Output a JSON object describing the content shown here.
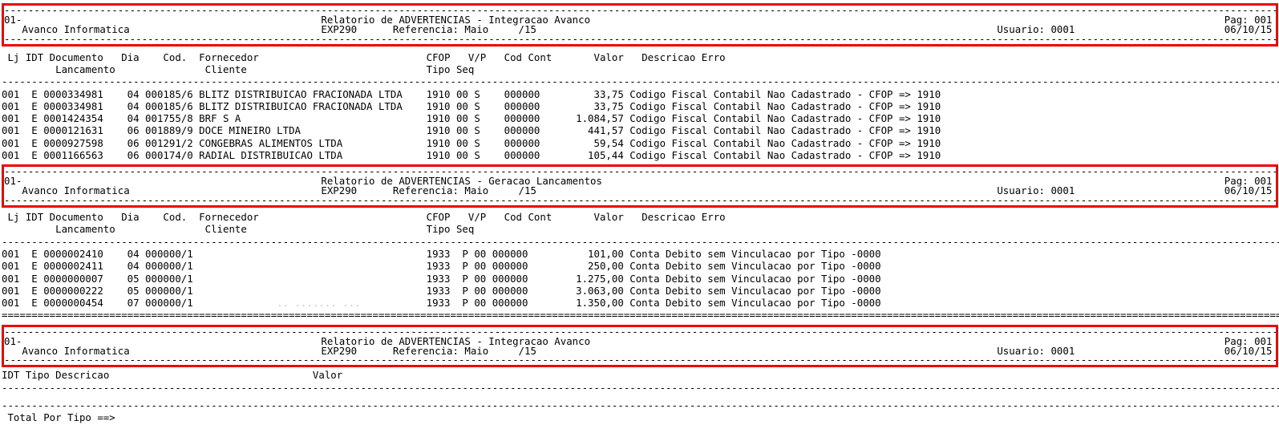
{
  "page_header": {
    "company_code": "01-",
    "company_name": "Avanco Informatica",
    "program": "EXP290",
    "reference": "Referencia: Maio",
    "period": "/15",
    "page": "Pag: 001",
    "user": "Usuario: 0001",
    "date": "06/10/15"
  },
  "colors": {
    "highlight_border": "#ee0000",
    "text": "#000000",
    "faint_text": "#c4c9d4"
  },
  "sections": [
    {
      "title": "Relatorio de ADVERTENCIAS - Integracao Avanco",
      "header1": {
        "lj": "Lj",
        "idt": "IDT",
        "documento": "Documento",
        "dia": "Dia",
        "codigo": "Cod.",
        "fornecedor": "Fornecedor",
        "cfop": "CFOP",
        "vp": "V/P",
        "cod_cont": "Cod Cont",
        "valor": "Valor",
        "erro": "Descricao Erro"
      },
      "header2": {
        "lancamento": "Lancamento",
        "cliente": "Cliente",
        "tipo": "Tipo",
        "seq": "Seq"
      },
      "rows": [
        {
          "lj": "001",
          "idt": "E",
          "documento": "0000334981",
          "dia": "04",
          "codigo": "000185/6",
          "nome": "BLITZ DISTRIBUICAO FRACIONADA LTDA",
          "cfop": "1910",
          "seq": "00",
          "vp": "S",
          "cod_cont": "000000",
          "valor": "33,75",
          "erro": "Codigo Fiscal Contabil Nao Cadastrado - CFOP => 1910"
        },
        {
          "lj": "001",
          "idt": "E",
          "documento": "0000334981",
          "dia": "04",
          "codigo": "000185/6",
          "nome": "BLITZ DISTRIBUICAO FRACIONADA LTDA",
          "cfop": "1910",
          "seq": "00",
          "vp": "S",
          "cod_cont": "000000",
          "valor": "33,75",
          "erro": "Codigo Fiscal Contabil Nao Cadastrado - CFOP => 1910"
        },
        {
          "lj": "001",
          "idt": "E",
          "documento": "0001424354",
          "dia": "04",
          "codigo": "001755/8",
          "nome": "BRF S A",
          "cfop": "1910",
          "seq": "00",
          "vp": "S",
          "cod_cont": "000000",
          "valor": "1.084,57",
          "erro": "Codigo Fiscal Contabil Nao Cadastrado - CFOP => 1910"
        },
        {
          "lj": "001",
          "idt": "E",
          "documento": "0000121631",
          "dia": "06",
          "codigo": "001889/9",
          "nome": "DOCE MINEIRO LTDA",
          "cfop": "1910",
          "seq": "00",
          "vp": "S",
          "cod_cont": "000000",
          "valor": "441,57",
          "erro": "Codigo Fiscal Contabil Nao Cadastrado - CFOP => 1910"
        },
        {
          "lj": "001",
          "idt": "E",
          "documento": "0000927598",
          "dia": "06",
          "codigo": "001291/2",
          "nome": "CONGEBRAS ALIMENTOS LTDA",
          "cfop": "1910",
          "seq": "00",
          "vp": "S",
          "cod_cont": "000000",
          "valor": "59,54",
          "erro": "Codigo Fiscal Contabil Nao Cadastrado - CFOP => 1910"
        },
        {
          "lj": "001",
          "idt": "E",
          "documento": "0001166563",
          "dia": "06",
          "codigo": "000174/0",
          "nome": "RADIAL DISTRIBUICAO LTDA",
          "cfop": "1910",
          "seq": "00",
          "vp": "S",
          "cod_cont": "000000",
          "valor": "105,44",
          "erro": "Codigo Fiscal Contabil Nao Cadastrado - CFOP => 1910"
        }
      ]
    },
    {
      "title": "Relatorio de ADVERTENCIAS - Geracao Lancamentos",
      "header1": {
        "lj": "Lj",
        "idt": "IDT",
        "documento": "Documento",
        "dia": "Dia",
        "codigo": "Cod.",
        "fornecedor": "Fornecedor",
        "cfop": "CFOP",
        "vp": "V/P",
        "cod_cont": "Cod Cont",
        "valor": "Valor",
        "erro": "Descricao Erro"
      },
      "header2": {
        "lancamento": "Lancamento",
        "cliente": "Cliente",
        "tipo": "Tipo",
        "seq": "Seq"
      },
      "rows": [
        {
          "lj": "001",
          "idt": "E",
          "documento": "0000002410",
          "dia": "04",
          "codigo": "000000/1",
          "cfop": "1933",
          "vp": "P",
          "seq": "00",
          "cod_cont": "000000",
          "valor": "101,00",
          "erro": "Conta Debito sem Vinculacao por Tipo -0000"
        },
        {
          "lj": "001",
          "idt": "E",
          "documento": "0000002411",
          "dia": "04",
          "codigo": "000000/1",
          "cfop": "1933",
          "vp": "P",
          "seq": "00",
          "cod_cont": "000000",
          "valor": "250,00",
          "erro": "Conta Debito sem Vinculacao por Tipo -0000"
        },
        {
          "lj": "001",
          "idt": "E",
          "documento": "0000000007",
          "dia": "05",
          "codigo": "000000/1",
          "cfop": "1933",
          "vp": "P",
          "seq": "00",
          "cod_cont": "000000",
          "valor": "1.275,00",
          "erro": "Conta Debito sem Vinculacao por Tipo -0000"
        },
        {
          "lj": "001",
          "idt": "E",
          "documento": "0000000222",
          "dia": "05",
          "codigo": "000000/1",
          "cfop": "1933",
          "vp": "P",
          "seq": "00",
          "cod_cont": "000000",
          "valor": "3.063,00",
          "erro": "Conta Debito sem Vinculacao por Tipo -0000"
        },
        {
          "lj": "001",
          "idt": "E",
          "documento": "0000000454",
          "dia": "07",
          "codigo": "000000/1",
          "nota": ".. ....... ...",
          "cfop": "1933",
          "vp": "P",
          "seq": "00",
          "cod_cont": "000000",
          "valor": "1.350,00",
          "erro": "Conta Debito sem Vinculacao por Tipo -0000"
        }
      ]
    },
    {
      "title": "Relatorio de ADVERTENCIAS - Integracao Avanco",
      "header_left": "IDT Tipo Descricao",
      "header_valor": "Valor",
      "total_label": "Total Por Tipo ==>",
      "rows": []
    }
  ]
}
